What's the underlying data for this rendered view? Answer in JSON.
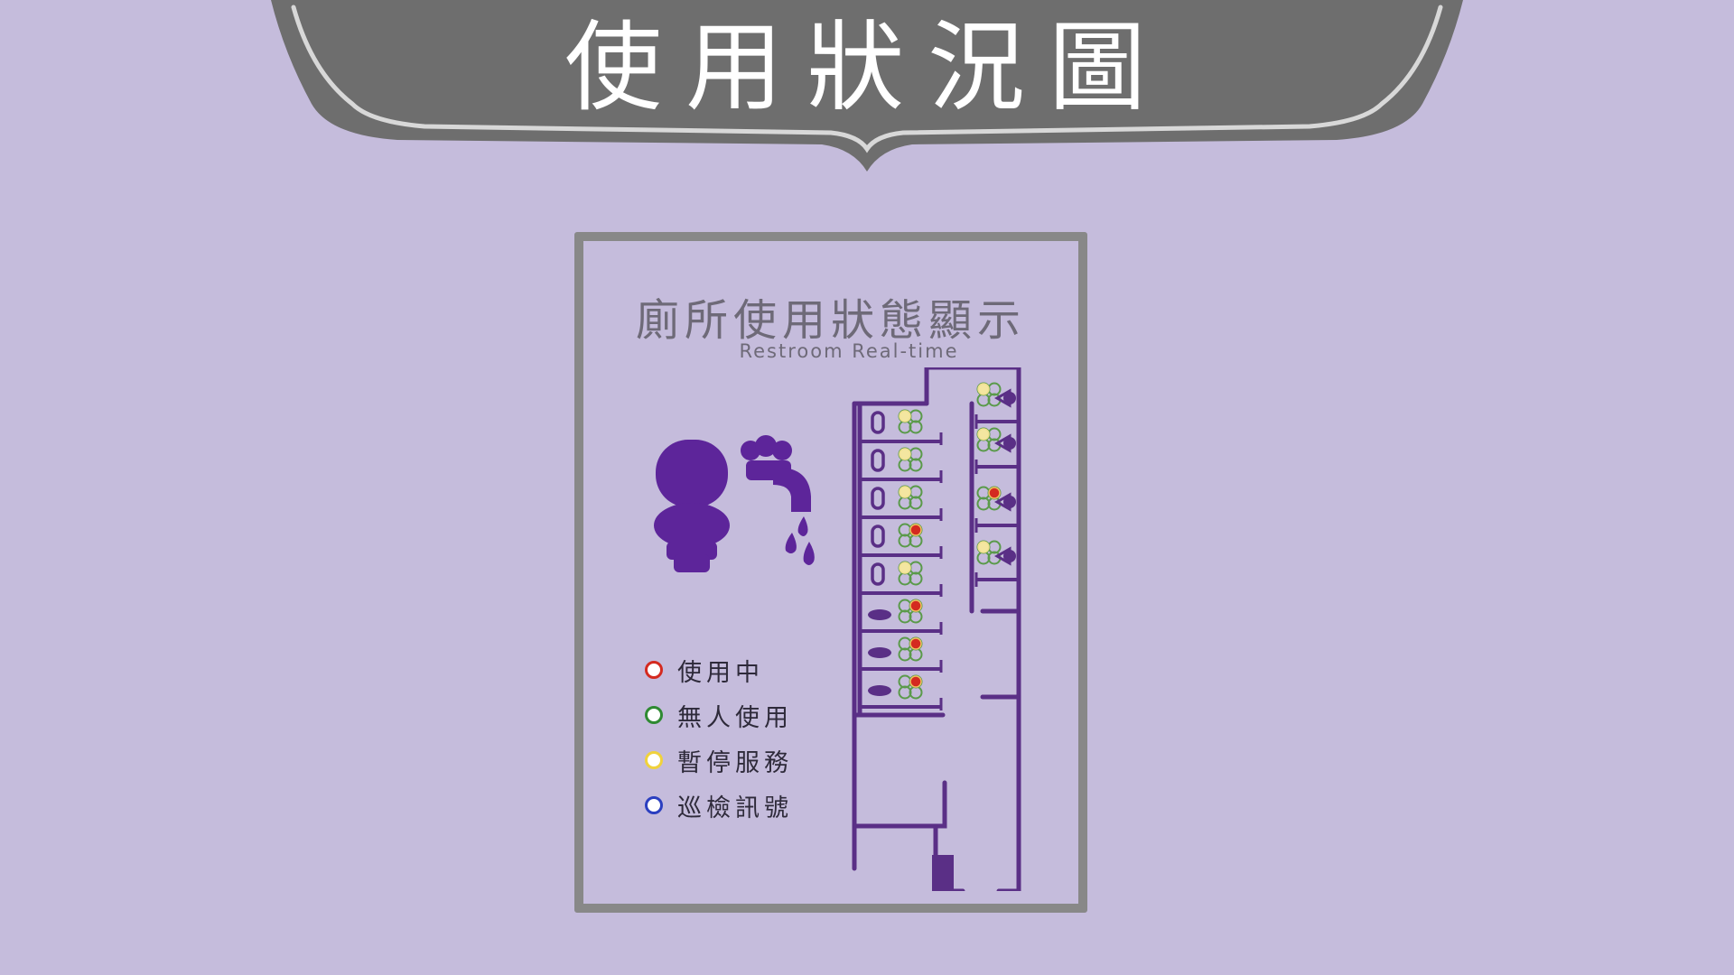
{
  "banner": {
    "title": "使用狀況圖"
  },
  "panel": {
    "title": "廁所使用狀態顯示",
    "subtitle": "Restroom Real-time"
  },
  "legend": [
    {
      "label": "使用中",
      "color": "#d42a20"
    },
    {
      "label": "無人使用",
      "color": "#2f8a32"
    },
    {
      "label": "暫停服務",
      "color": "#f0d23c"
    },
    {
      "label": "巡檢訊號",
      "color": "#2b3fc0"
    }
  ],
  "colors": {
    "background": "#c5bcdc",
    "banner": "#6e6e6e",
    "frame": "#888888",
    "plan": "#5a2f86",
    "icon": "#5d259a"
  },
  "stalls_left": [
    {
      "type": "toilet",
      "status": "yellow"
    },
    {
      "type": "toilet",
      "status": "yellow"
    },
    {
      "type": "toilet",
      "status": "yellow"
    },
    {
      "type": "toilet",
      "status": "red"
    },
    {
      "type": "toilet",
      "status": "yellow"
    },
    {
      "type": "squat",
      "status": "red"
    },
    {
      "type": "squat",
      "status": "red"
    },
    {
      "type": "squat",
      "status": "red"
    }
  ],
  "stalls_right": [
    {
      "type": "toilet",
      "status": "yellow"
    },
    {
      "type": "toilet",
      "status": "yellow"
    },
    {
      "type": "toilet",
      "status": "red"
    },
    {
      "type": "toilet",
      "status": "yellow"
    }
  ]
}
